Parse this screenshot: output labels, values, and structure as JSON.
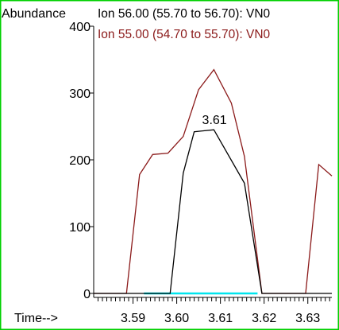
{
  "chart_data": {
    "type": "line",
    "title": "",
    "xlabel": "Time-->",
    "ylabel": "Abundance",
    "xlim": [
      3.581,
      3.6355
    ],
    "ylim": [
      -10,
      400
    ],
    "x_ticks": [
      3.59,
      3.6,
      3.61,
      3.62,
      3.63
    ],
    "x_tick_labels": [
      "3.59",
      "3.60",
      "3.61",
      "3.62",
      "3.63"
    ],
    "y_ticks": [
      0,
      100,
      200,
      300,
      400
    ],
    "y_tick_labels": [
      "0",
      "100",
      "200",
      "300",
      "400"
    ],
    "peak_annotation": {
      "label": "3.61",
      "x": 3.609,
      "y": 245
    },
    "series": [
      {
        "name": "Ion  56.00 (55.70 to 56.70): VN0",
        "color": "#000000",
        "x": [
          3.581,
          3.5985,
          3.6015,
          3.604,
          3.6085,
          3.6155,
          3.6195,
          3.6355
        ],
        "y": [
          0,
          0,
          180,
          242,
          245,
          165,
          0,
          0
        ]
      },
      {
        "name": "Ion  55.00 (54.70 to 55.70): VN0",
        "color": "#8b1a1a",
        "x": [
          3.581,
          3.5885,
          3.5915,
          3.5945,
          3.598,
          3.6015,
          3.605,
          3.6085,
          3.6125,
          3.6155,
          3.6195,
          3.6295,
          3.6325,
          3.6355
        ],
        "y": [
          0,
          0,
          178,
          208,
          210,
          235,
          305,
          335,
          285,
          205,
          0,
          0,
          193,
          176
        ]
      }
    ],
    "baseline_segment": {
      "color": "#00e5ee",
      "x": [
        3.5925,
        3.6185
      ],
      "y": 0
    }
  }
}
